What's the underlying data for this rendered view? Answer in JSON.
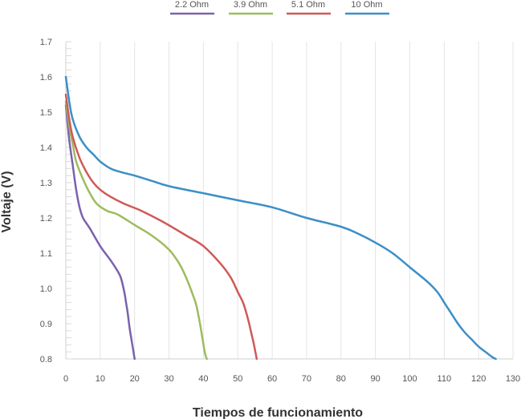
{
  "chart_data": {
    "type": "line",
    "title": "",
    "xlabel": "Tiempos de funcionamiento",
    "ylabel": "Voltaje (V)",
    "xlim": [
      0,
      130
    ],
    "ylim": [
      0.8,
      1.7
    ],
    "xticks": [
      0,
      10,
      20,
      30,
      40,
      50,
      60,
      70,
      80,
      90,
      100,
      110,
      120,
      130
    ],
    "yticks": [
      "0.8",
      "0.9",
      "1.0",
      "1.1",
      "1.2",
      "1.3",
      "1.4",
      "1.5",
      "1.6",
      "1.7"
    ],
    "grid": "vertical",
    "legend_position": "top",
    "series": [
      {
        "name": "2.2 Ohm",
        "color": "#7a62ad",
        "x": [
          0,
          0.5,
          1,
          2,
          3,
          4,
          5,
          7,
          10,
          13,
          15,
          16,
          17,
          17.5,
          18,
          18.5,
          19,
          19.5,
          20
        ],
        "y": [
          1.52,
          1.47,
          1.42,
          1.35,
          1.28,
          1.23,
          1.2,
          1.17,
          1.12,
          1.08,
          1.05,
          1.03,
          0.99,
          0.96,
          0.93,
          0.89,
          0.86,
          0.83,
          0.8
        ]
      },
      {
        "name": "3.9 Ohm",
        "color": "#9dbc5c",
        "x": [
          0,
          1,
          2,
          3,
          5,
          7,
          9,
          12,
          15,
          20,
          25,
          30,
          33,
          35,
          37,
          38,
          39,
          39.7,
          40.2,
          40.6,
          41
        ],
        "y": [
          1.53,
          1.46,
          1.41,
          1.36,
          1.31,
          1.27,
          1.24,
          1.22,
          1.21,
          1.18,
          1.15,
          1.11,
          1.07,
          1.03,
          0.98,
          0.95,
          0.9,
          0.86,
          0.83,
          0.81,
          0.8
        ]
      },
      {
        "name": "5.1 Ohm",
        "color": "#cf5a57",
        "x": [
          0,
          1,
          2,
          4,
          6,
          8,
          10,
          13,
          17,
          22,
          28,
          35,
          40,
          45,
          48,
          50,
          51.5,
          52.5,
          53.3,
          54,
          54.7,
          55.5
        ],
        "y": [
          1.55,
          1.48,
          1.43,
          1.37,
          1.33,
          1.3,
          1.28,
          1.26,
          1.24,
          1.22,
          1.19,
          1.15,
          1.12,
          1.07,
          1.03,
          0.99,
          0.96,
          0.93,
          0.9,
          0.87,
          0.84,
          0.8
        ]
      },
      {
        "name": "10 Ohm",
        "color": "#3b8fc7",
        "x": [
          0,
          1,
          2,
          4,
          6,
          8,
          10,
          13,
          16,
          20,
          25,
          30,
          40,
          50,
          60,
          70,
          80,
          85,
          90,
          95,
          100,
          105,
          108,
          110,
          112,
          114,
          116,
          118,
          120,
          122,
          124,
          125
        ],
        "y": [
          1.6,
          1.53,
          1.48,
          1.43,
          1.4,
          1.38,
          1.36,
          1.34,
          1.33,
          1.32,
          1.305,
          1.29,
          1.27,
          1.25,
          1.23,
          1.2,
          1.175,
          1.155,
          1.13,
          1.1,
          1.06,
          1.02,
          0.99,
          0.96,
          0.93,
          0.9,
          0.875,
          0.855,
          0.835,
          0.82,
          0.805,
          0.8
        ]
      }
    ]
  }
}
